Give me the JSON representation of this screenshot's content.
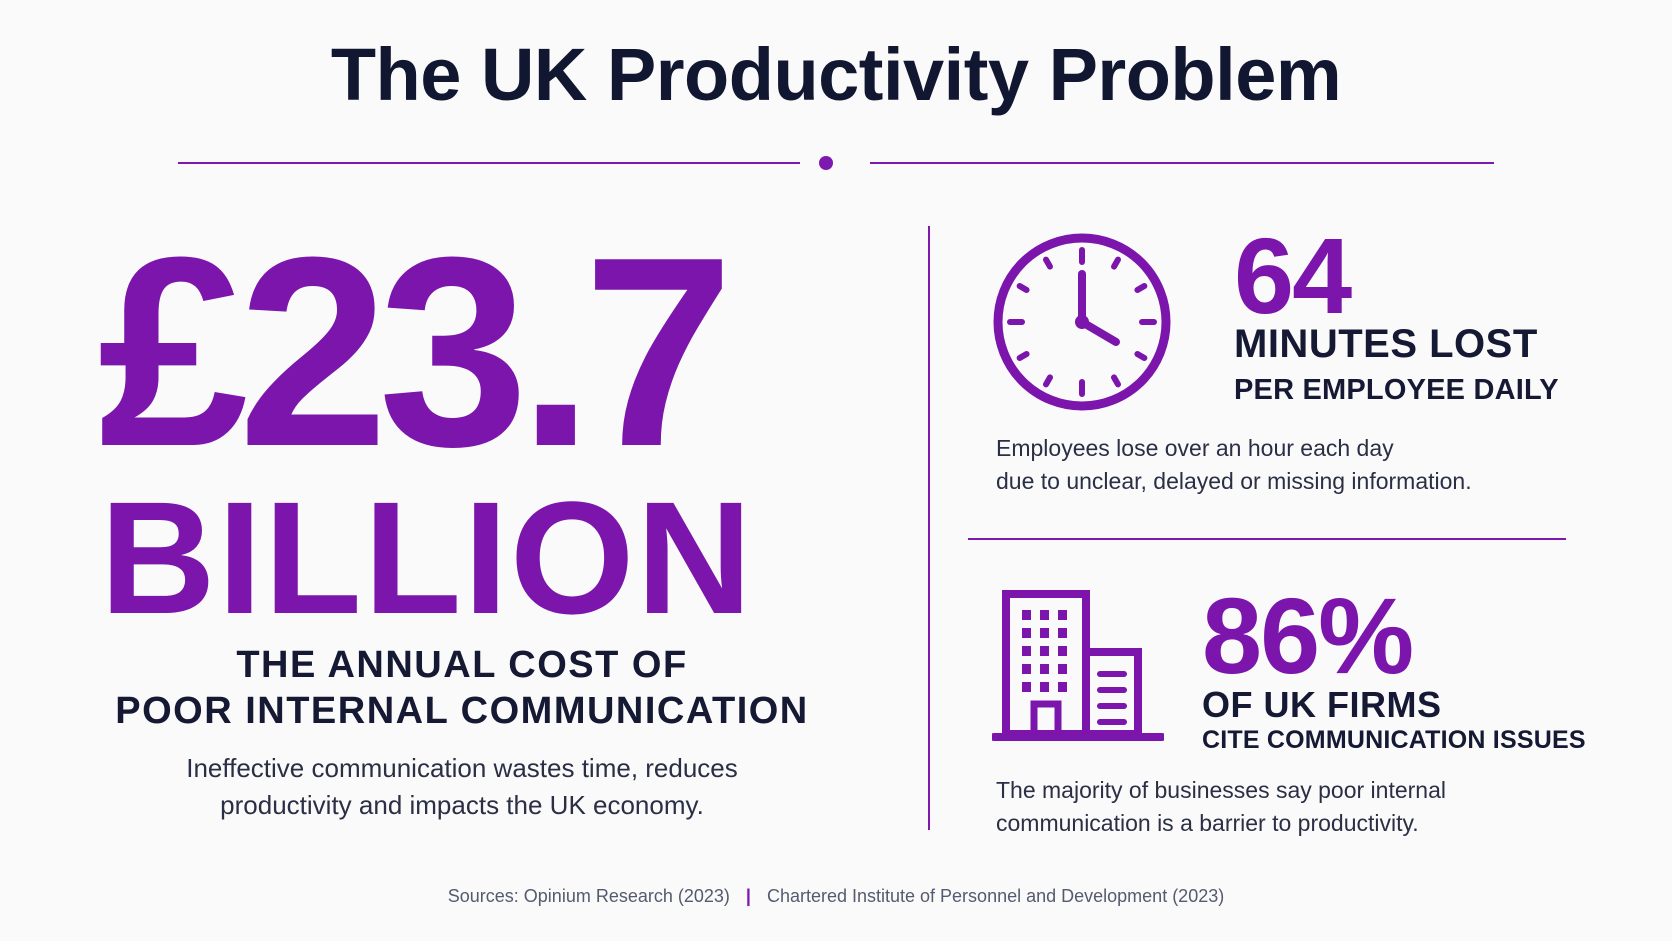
{
  "header": {
    "title": "The UK Productivity Problem"
  },
  "cost": {
    "amount": "£23.7",
    "unit": "BILLION",
    "caption_line1": "THE ANNUAL COST OF",
    "caption_line2": "POOR INTERNAL COMMUNICATION",
    "desc_line1": "Ineffective communication wastes time, reduces",
    "desc_line2": "productivity and impacts the UK economy."
  },
  "minutes": {
    "icon": "clock-icon",
    "value": "64",
    "label": "MINUTES LOST",
    "sublabel": "PER EMPLOYEE DAILY",
    "desc_line1": "Employees lose over an hour each day",
    "desc_line2": "due to unclear, delayed or missing information."
  },
  "firms": {
    "icon": "building-icon",
    "value": "86%",
    "label": "OF UK FIRMS",
    "sublabel": "CITE COMMUNICATION ISSUES",
    "desc_line1": "The majority of businesses say poor internal",
    "desc_line2": "communication is a barrier to productivity."
  },
  "sources": {
    "source1": "Sources: Opinium Research (2023)",
    "separator": "|",
    "source2": "Chartered Institute of Personnel and Development (2023)"
  },
  "colors": {
    "accent": "#7b15ab",
    "text": "#151933",
    "background": "#fafafa"
  }
}
